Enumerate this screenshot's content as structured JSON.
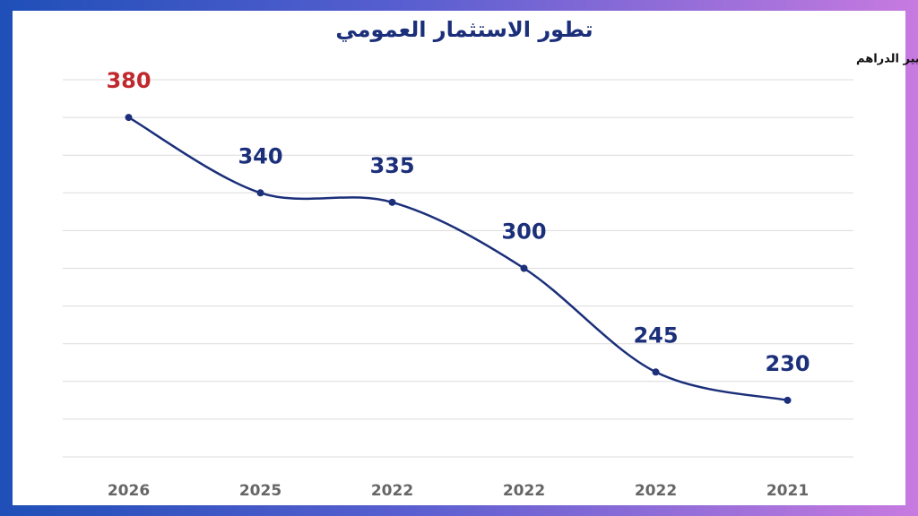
{
  "chart_data": {
    "type": "line",
    "title": "تطور الاستثمار العمومي",
    "subtitle": "بملايير الدراهم",
    "categories": [
      "2026",
      "2025",
      "2022",
      "2022",
      "2022",
      "2021"
    ],
    "series": [
      {
        "color": "#1b2f7a",
        "values": [
          380,
          340,
          335,
          300,
          245,
          230
        ],
        "value_label_colors": [
          "#c0282d",
          "#1b2f7a",
          "#1b2f7a",
          "#1b2f7a",
          "#1b2f7a",
          "#1b2f7a"
        ]
      }
    ],
    "ylim": [
      200,
      400
    ],
    "yticks": [
      200,
      220,
      240,
      260,
      280,
      300,
      320,
      340,
      360,
      380,
      400
    ],
    "grid": true
  }
}
